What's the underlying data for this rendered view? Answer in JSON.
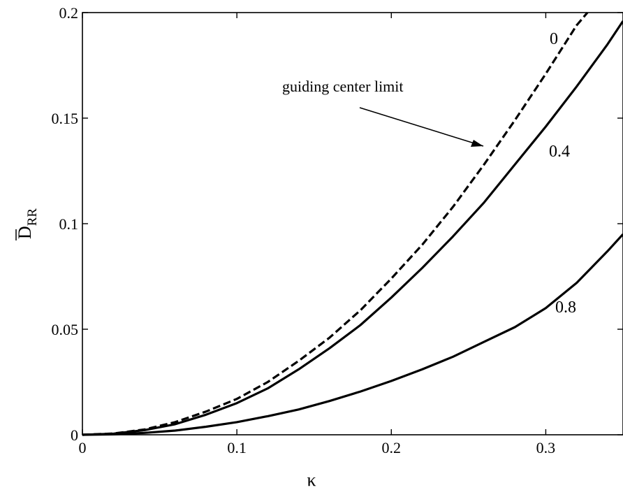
{
  "chart_data": {
    "type": "line",
    "xlabel": "κ",
    "ylabel": {
      "main": "D",
      "subscript": "RR",
      "overbar": true
    },
    "xlim": [
      0,
      0.35
    ],
    "ylim": [
      0,
      0.2
    ],
    "xticks": [
      {
        "value": 0,
        "label": "0"
      },
      {
        "value": 0.1,
        "label": "0.1"
      },
      {
        "value": 0.2,
        "label": "0.2"
      },
      {
        "value": 0.3,
        "label": "0.3"
      }
    ],
    "yticks": [
      {
        "value": 0,
        "label": "0"
      },
      {
        "value": 0.05,
        "label": "0.05"
      },
      {
        "value": 0.1,
        "label": "0.1"
      },
      {
        "value": 0.15,
        "label": "0.15"
      },
      {
        "value": 0.2,
        "label": "0.2"
      }
    ],
    "grid": false,
    "series": [
      {
        "name": "0",
        "style": "dashed",
        "x": [
          0,
          0.02,
          0.04,
          0.06,
          0.08,
          0.1,
          0.12,
          0.14,
          0.16,
          0.18,
          0.2,
          0.22,
          0.24,
          0.26,
          0.28,
          0.3,
          0.32,
          0.327
        ],
        "y": [
          0,
          0.0006,
          0.0025,
          0.006,
          0.011,
          0.017,
          0.025,
          0.035,
          0.046,
          0.059,
          0.074,
          0.09,
          0.108,
          0.128,
          0.149,
          0.171,
          0.194,
          0.2
        ]
      },
      {
        "name": "0.4",
        "style": "solid",
        "x": [
          0,
          0.02,
          0.04,
          0.06,
          0.08,
          0.1,
          0.12,
          0.14,
          0.16,
          0.18,
          0.2,
          0.22,
          0.24,
          0.26,
          0.28,
          0.3,
          0.32,
          0.34,
          0.35
        ],
        "y": [
          0,
          0.0005,
          0.0022,
          0.005,
          0.0095,
          0.015,
          0.022,
          0.031,
          0.041,
          0.052,
          0.065,
          0.079,
          0.094,
          0.11,
          0.128,
          0.146,
          0.165,
          0.185,
          0.196
        ]
      },
      {
        "name": "0.8",
        "style": "solid",
        "x": [
          0,
          0.02,
          0.04,
          0.06,
          0.08,
          0.1,
          0.12,
          0.14,
          0.16,
          0.18,
          0.2,
          0.22,
          0.24,
          0.26,
          0.28,
          0.3,
          0.32,
          0.34,
          0.35
        ],
        "y": [
          0,
          0.0002,
          0.0009,
          0.002,
          0.0038,
          0.006,
          0.0088,
          0.012,
          0.016,
          0.0205,
          0.0255,
          0.031,
          0.037,
          0.044,
          0.051,
          0.06,
          0.072,
          0.087,
          0.095
        ]
      }
    ],
    "annotations": [
      {
        "text": "guiding center limit",
        "points_to_series": "0"
      }
    ]
  }
}
